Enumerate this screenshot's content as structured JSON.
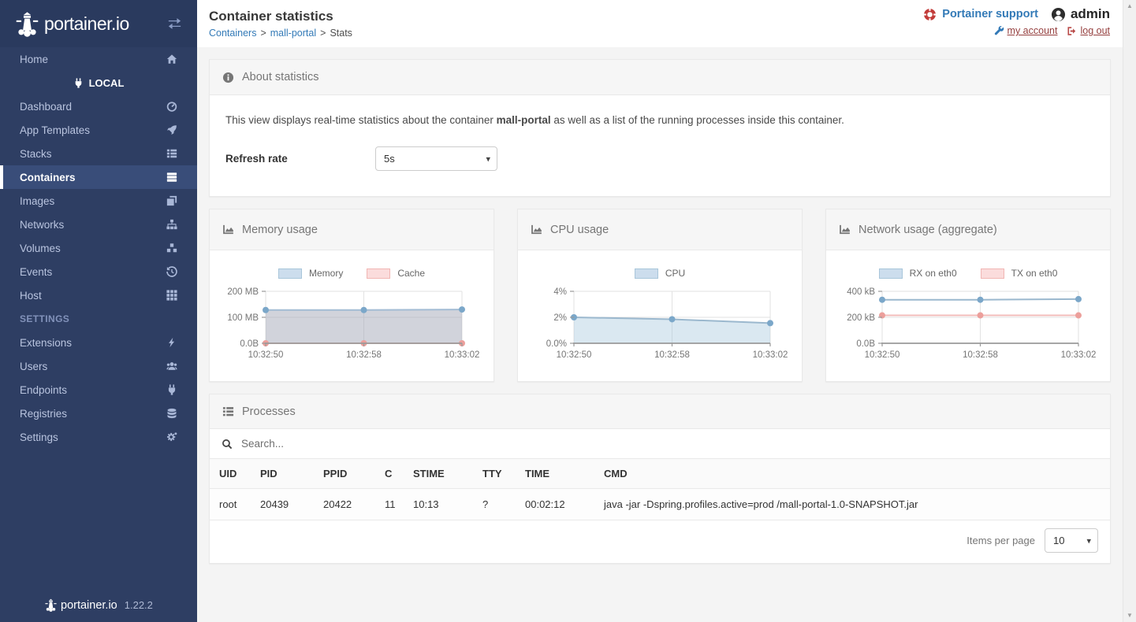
{
  "sidebar": {
    "logo_text": "portainer.io",
    "home": {
      "label": "Home",
      "icon": "home"
    },
    "endpoint_label": "LOCAL",
    "local_items": [
      {
        "label": "Dashboard",
        "icon": "gauge",
        "active": false
      },
      {
        "label": "App Templates",
        "icon": "rocket",
        "active": false
      },
      {
        "label": "Stacks",
        "icon": "thlist",
        "active": false
      },
      {
        "label": "Containers",
        "icon": "server",
        "active": true
      },
      {
        "label": "Images",
        "icon": "layers",
        "active": false
      },
      {
        "label": "Networks",
        "icon": "sitemap",
        "active": false
      },
      {
        "label": "Volumes",
        "icon": "cubes",
        "active": false
      },
      {
        "label": "Events",
        "icon": "history",
        "active": false
      },
      {
        "label": "Host",
        "icon": "grid",
        "active": false
      }
    ],
    "settings_header": "SETTINGS",
    "settings_items": [
      {
        "label": "Extensions",
        "icon": "bolt",
        "active": false
      },
      {
        "label": "Users",
        "icon": "users",
        "active": false
      },
      {
        "label": "Endpoints",
        "icon": "plug",
        "active": false
      },
      {
        "label": "Registries",
        "icon": "database",
        "active": false
      },
      {
        "label": "Settings",
        "icon": "cogs",
        "active": false
      }
    ],
    "footer_logo_text": "portainer.io",
    "version": "1.22.2"
  },
  "header": {
    "title": "Container statistics",
    "breadcrumb": [
      {
        "label": "Containers",
        "link": true
      },
      {
        "label": "mall-portal",
        "link": true
      },
      {
        "label": "Stats",
        "link": false
      }
    ],
    "support_label": "Portainer support",
    "username": "admin",
    "my_account_label": "my account",
    "logout_label": "log out"
  },
  "about": {
    "title": "About statistics",
    "description_prefix": "This view displays real-time statistics about the container ",
    "container_name": "mall-portal",
    "description_suffix": " as well as a list of the running processes inside this container.",
    "refresh_label": "Refresh rate",
    "refresh_value": "5s"
  },
  "chart_data": [
    {
      "type": "area",
      "title": "Memory usage",
      "x": [
        "10:32:50",
        "10:32:58",
        "10:33:02"
      ],
      "ylim": [
        0,
        200
      ],
      "yticks": [
        {
          "v": 200,
          "label": "200 MB"
        },
        {
          "v": 100,
          "label": "100 MB"
        },
        {
          "v": 0,
          "label": "0.0B"
        }
      ],
      "grid": true,
      "legend_position": "top",
      "series": [
        {
          "name": "Memory",
          "values": [
            128,
            128,
            130
          ],
          "line": "#a3bcd4",
          "point": "#7ba7c9",
          "fill": "rgba(164,167,183,0.5)",
          "swatch_fill": "#ccdded",
          "swatch_border": "#a9c6da"
        },
        {
          "name": "Cache",
          "values": [
            0,
            0,
            0
          ],
          "line": "#f3bdbb",
          "point": "#ec9f9b",
          "fill": "none",
          "swatch_fill": "#fbdcdc",
          "swatch_border": "#f1b6b4"
        }
      ]
    },
    {
      "type": "area",
      "title": "CPU usage",
      "x": [
        "10:32:50",
        "10:32:58",
        "10:33:02"
      ],
      "ylim": [
        0,
        4
      ],
      "yticks": [
        {
          "v": 4,
          "label": "4%"
        },
        {
          "v": 2,
          "label": "2%"
        },
        {
          "v": 0,
          "label": "0.0%"
        }
      ],
      "grid": true,
      "legend_position": "top",
      "series": [
        {
          "name": "CPU",
          "values": [
            2.0,
            1.85,
            1.55
          ],
          "line": "#9bb8ce",
          "point": "#7ba7c9",
          "fill": "rgba(173,203,224,0.45)",
          "swatch_fill": "#ccdded",
          "swatch_border": "#a9c6da"
        }
      ]
    },
    {
      "type": "line",
      "title": "Network usage (aggregate)",
      "x": [
        "10:32:50",
        "10:32:58",
        "10:33:02"
      ],
      "ylim": [
        0,
        400
      ],
      "yticks": [
        {
          "v": 400,
          "label": "400 kB"
        },
        {
          "v": 200,
          "label": "200 kB"
        },
        {
          "v": 0,
          "label": "0.0B"
        }
      ],
      "grid": true,
      "legend_position": "top",
      "series": [
        {
          "name": "RX on eth0",
          "values": [
            335,
            335,
            340
          ],
          "line": "#9bb8ce",
          "point": "#7ba7c9",
          "fill": "none",
          "swatch_fill": "#ccdded",
          "swatch_border": "#a9c6da"
        },
        {
          "name": "TX on eth0",
          "values": [
            215,
            215,
            215
          ],
          "line": "#f3bdbb",
          "point": "#ec9f9b",
          "fill": "none",
          "swatch_fill": "#fbdcdc",
          "swatch_border": "#f1b6b4"
        }
      ]
    }
  ],
  "processes": {
    "title": "Processes",
    "search_placeholder": "Search...",
    "columns": [
      "UID",
      "PID",
      "PPID",
      "C",
      "STIME",
      "TTY",
      "TIME",
      "CMD"
    ],
    "rows": [
      [
        "root",
        "20439",
        "20422",
        "11",
        "10:13",
        "?",
        "00:02:12",
        "java -jar -Dspring.profiles.active=prod /mall-portal-1.0-SNAPSHOT.jar"
      ]
    ],
    "items_per_page_label": "Items per page",
    "items_per_page_value": "10"
  },
  "colors": {
    "sidebar_bg": "#2e3e63",
    "sidebar_active_bg": "#394d79",
    "link_blue": "#337ab7",
    "account_link": "#953f3e",
    "support_icon_red": "#c23b39",
    "widget_header_bg": "#f6f6f6",
    "page_bg": "#f4f4f4"
  }
}
